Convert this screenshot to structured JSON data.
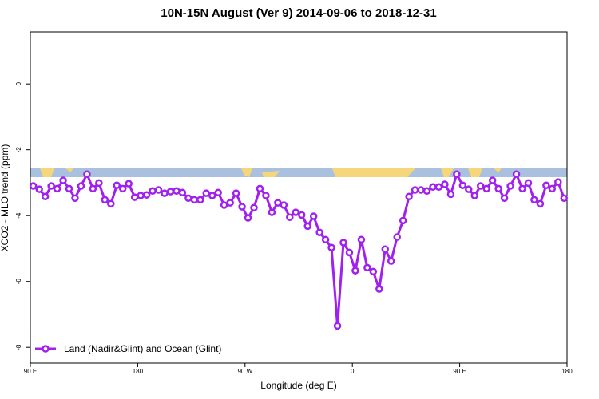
{
  "chart_data": {
    "type": "line",
    "title": "10N-15N August (Ver 9)   2014-09-06 to 2018-12-31",
    "x_label": "Longitude (deg E)",
    "y_label": "XCO2 - MLO trend (ppm)",
    "xlim": [
      90,
      540
    ],
    "ylim": [
      -8.48,
      1.58
    ],
    "xticks": [
      {
        "value": 90,
        "label": "90 E"
      },
      180,
      {
        "value": 270,
        "label": "90 W"
      },
      {
        "value": 360,
        "label": "0"
      },
      {
        "value": 450,
        "label": "90 E"
      },
      {
        "value": 540,
        "label": "180"
      }
    ],
    "yticks": [
      0,
      -2,
      -4,
      -6,
      -8
    ],
    "legend": "bottomleft",
    "x": [
      92.5,
      97.5,
      102.5,
      107.5,
      112.5,
      117.5,
      122.5,
      127.5,
      132.5,
      137.5,
      142.5,
      147.5,
      152.5,
      157.5,
      162.5,
      167.5,
      172.5,
      177.5,
      182.5,
      187.5,
      192.5,
      197.5,
      202.5,
      207.5,
      212.5,
      217.5,
      222.5,
      227.5,
      232.5,
      237.5,
      242.5,
      247.5,
      252.5,
      257.5,
      262.5,
      267.5,
      272.5,
      277.5,
      282.5,
      287.5,
      292.5,
      297.5,
      302.5,
      307.5,
      312.5,
      317.5,
      322.5,
      327.5,
      332.5,
      337.5,
      342.5,
      347.5,
      352.5,
      357.5,
      362.5,
      367.5,
      372.5,
      377.5,
      382.5,
      387.5,
      392.5,
      397.5,
      402.5,
      407.5,
      412.5,
      417.5,
      422.5,
      427.5,
      432.5,
      437.5,
      442.5,
      447.5,
      452.5,
      457.5,
      462.5,
      467.5,
      472.5,
      477.5,
      482.5,
      487.5,
      492.5,
      497.5,
      502.5,
      507.5,
      512.5,
      517.5,
      522.5,
      527.5,
      532.5,
      537.5
    ],
    "series": [
      {
        "name": "Land (Nadir&Glint) and Ocean (Glint)",
        "color": "#a020f0",
        "values": [
          -3.1,
          -3.2,
          -3.42,
          -3.1,
          -3.18,
          -2.93,
          -3.18,
          -3.47,
          -3.1,
          -2.74,
          -3.18,
          -3.01,
          -3.52,
          -3.64,
          -3.08,
          -3.18,
          -3.03,
          -3.44,
          -3.39,
          -3.37,
          -3.25,
          -3.22,
          -3.32,
          -3.27,
          -3.25,
          -3.3,
          -3.47,
          -3.52,
          -3.52,
          -3.32,
          -3.39,
          -3.3,
          -3.68,
          -3.61,
          -3.32,
          -3.73,
          -4.07,
          -3.76,
          -3.18,
          -3.39,
          -3.9,
          -3.61,
          -3.68,
          -4.05,
          -3.9,
          -3.98,
          -4.32,
          -4.02,
          -4.51,
          -4.73,
          -4.97,
          -7.35,
          -4.82,
          -5.12,
          -5.67,
          -4.73,
          -5.58,
          -5.7,
          -6.23,
          -5.02,
          -5.38,
          -4.65,
          -4.15,
          -3.42,
          -3.22,
          -3.22,
          -3.25,
          -3.13,
          -3.13,
          -3.05,
          -3.35,
          -2.74,
          -3.08,
          -3.2,
          -3.39,
          -3.1,
          -3.18,
          -2.93,
          -3.18,
          -3.47,
          -3.1,
          -2.74,
          -3.18,
          -3.01,
          -3.52,
          -3.64,
          -3.08,
          -3.18,
          -2.98,
          -3.47
        ]
      }
    ]
  }
}
